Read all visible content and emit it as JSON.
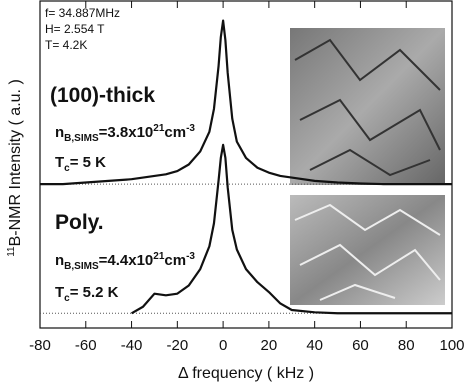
{
  "chart_data": {
    "type": "line",
    "x_label": "Δ frequency ( kHz )",
    "y_label": [
      "11",
      "B-NMR Intensity ( a.u. )"
    ],
    "xlim": [
      -80,
      100
    ],
    "ylim": [
      0,
      100
    ],
    "xticks": [
      -80,
      -60,
      -40,
      -20,
      0,
      20,
      40,
      60,
      80,
      100
    ],
    "conditions": [
      "f= 34.887MHz",
      "H= 2.554 T",
      "T= 4.2K"
    ],
    "samples": [
      {
        "label": "(100)-thick",
        "n": [
          "n",
          "B,SIMS",
          "=3.8x10",
          "21",
          "cm",
          "-3"
        ],
        "tc": [
          "T",
          "c",
          "= 5 K"
        ]
      },
      {
        "label": "Poly.",
        "n": [
          "n",
          "B,SIMS",
          "=4.4x10",
          "21",
          "cm",
          "-3"
        ],
        "tc": [
          "T",
          "c",
          "= 5.2 K"
        ]
      }
    ],
    "x": [
      -80,
      -70,
      -60,
      -50,
      -40,
      -35,
      -30,
      -25,
      -20,
      -15,
      -10,
      -6,
      -4,
      -2,
      -1,
      0,
      1,
      2,
      4,
      6,
      10,
      15,
      20,
      25,
      30,
      40,
      50,
      60,
      70,
      80,
      90,
      100
    ],
    "series": [
      {
        "color": "#111111",
        "baseline": 44,
        "values": [
          44,
          44,
          44.5,
          45,
          45.5,
          46,
          46.5,
          47,
          48,
          50,
          54,
          60,
          67,
          80,
          89,
          94,
          88,
          78,
          64,
          57,
          52,
          49,
          47.5,
          46.5,
          46,
          45,
          44.5,
          44.2,
          44,
          44,
          44,
          44
        ]
      },
      {
        "color": "#111111",
        "baseline": 4.5,
        "values": [
          null,
          null,
          null,
          null,
          4.5,
          6.5,
          10.5,
          10,
          10.5,
          13,
          18,
          25,
          32,
          45,
          52,
          56,
          52,
          43,
          30,
          24,
          18,
          14,
          11,
          7.5,
          5.5,
          4.8,
          4.5,
          4.5,
          4.5,
          4.5,
          4.5,
          4.5
        ]
      }
    ]
  }
}
